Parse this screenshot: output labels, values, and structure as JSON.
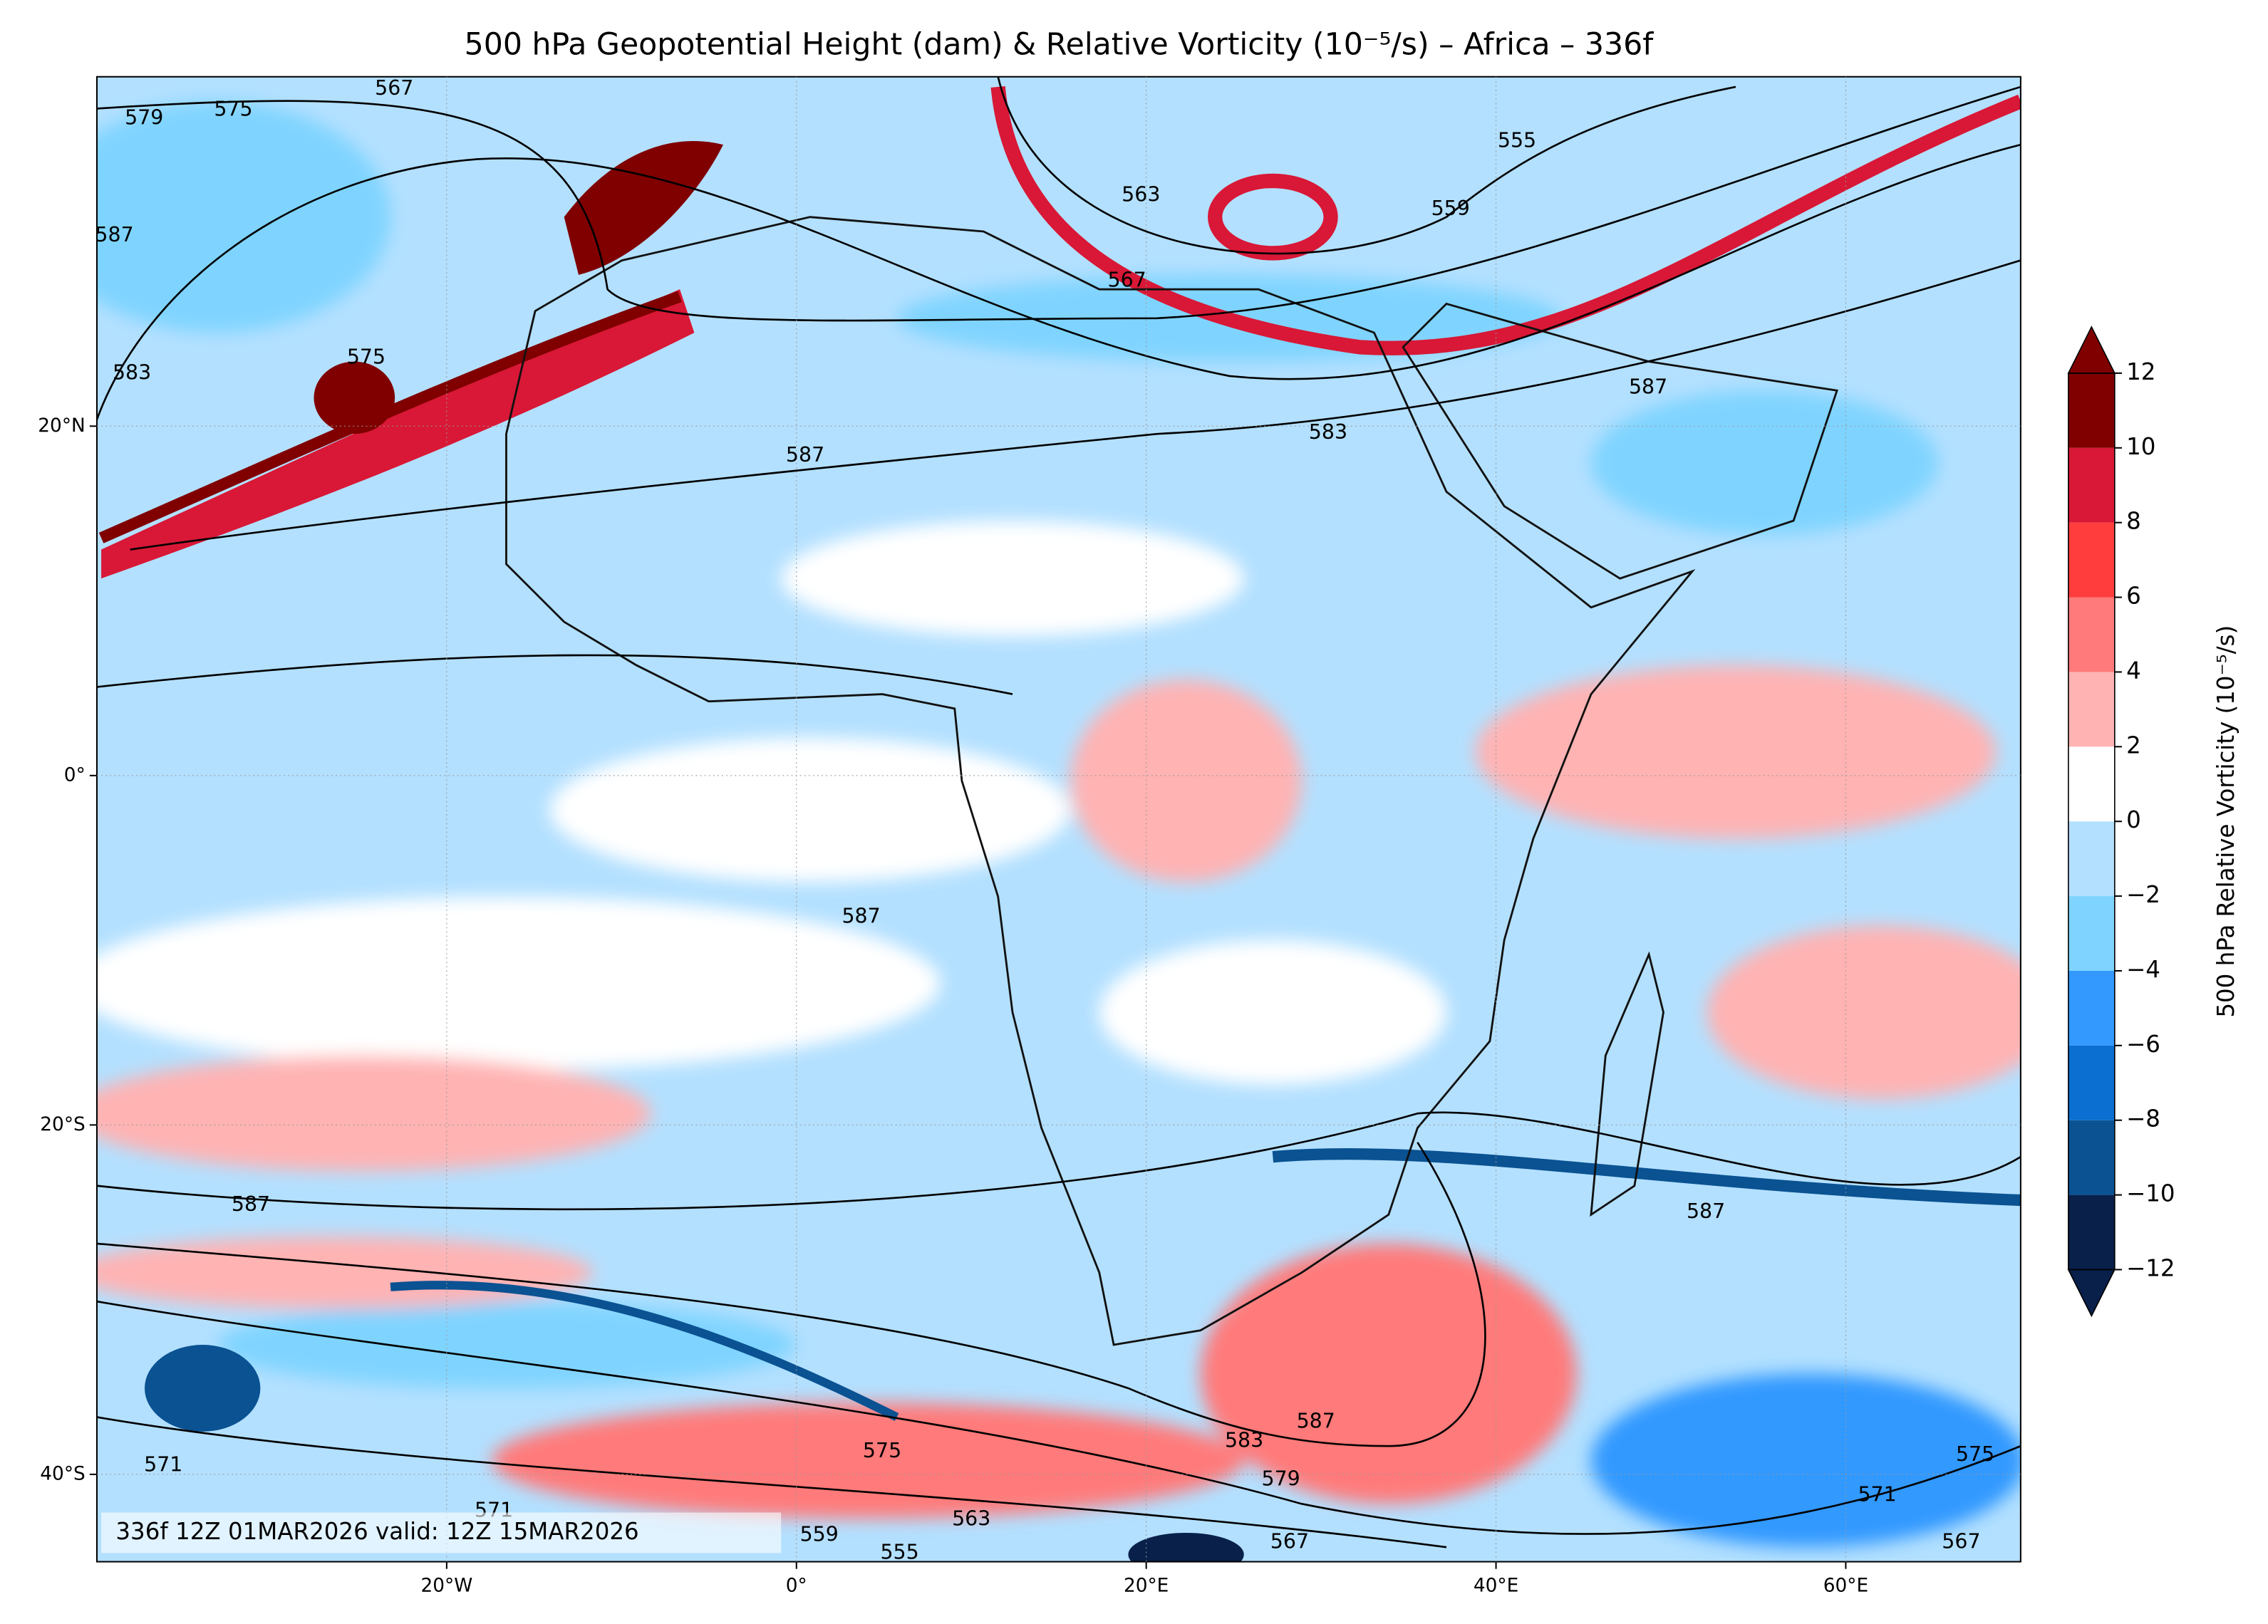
{
  "map_data": {
    "title": "500 hPa Geopotential Height (dam) & Relative Vorticity (10⁻⁵/s) – Africa – 336f",
    "footer": "336f 12Z 01MAR2026 valid: 12Z 15MAR2026",
    "xlim": [
      -40,
      70
    ],
    "ylim": [
      -45,
      40
    ],
    "xticks": [
      {
        "value": -20,
        "label": "20°W"
      },
      {
        "value": 0,
        "label": "0°"
      },
      {
        "value": 20,
        "label": "20°E"
      },
      {
        "value": 40,
        "label": "40°E"
      },
      {
        "value": 60,
        "label": "60°E"
      }
    ],
    "yticks": [
      {
        "value": 20,
        "label": "20°N"
      },
      {
        "value": 0,
        "label": "0°"
      },
      {
        "value": -20,
        "label": "20°S"
      },
      {
        "value": -40,
        "label": "40°S"
      }
    ],
    "contour_labels": [
      {
        "lon": -23,
        "lat": 39.3,
        "value": 567
      },
      {
        "lon": -32.2,
        "lat": 38.1,
        "value": 575
      },
      {
        "lon": -37.3,
        "lat": 37.6,
        "value": 579
      },
      {
        "lon": -39,
        "lat": 30.9,
        "value": 587
      },
      {
        "lon": -38,
        "lat": 23,
        "value": 583
      },
      {
        "lon": -24.6,
        "lat": 23.9,
        "value": 575
      },
      {
        "lon": 0.5,
        "lat": 18.3,
        "value": 587
      },
      {
        "lon": 30.4,
        "lat": 19.6,
        "value": 583
      },
      {
        "lon": 48.7,
        "lat": 22.2,
        "value": 587
      },
      {
        "lon": 18.9,
        "lat": 28.3,
        "value": 567
      },
      {
        "lon": 19.7,
        "lat": 33.2,
        "value": 563
      },
      {
        "lon": 37.4,
        "lat": 32.4,
        "value": 559
      },
      {
        "lon": 41.2,
        "lat": 36.3,
        "value": 555
      },
      {
        "lon": 3.7,
        "lat": -8.1,
        "value": 587
      },
      {
        "lon": -31.2,
        "lat": -24.6,
        "value": 587
      },
      {
        "lon": 52,
        "lat": -25,
        "value": 587
      },
      {
        "lon": 29.7,
        "lat": -37,
        "value": 587
      },
      {
        "lon": 25.6,
        "lat": -38.1,
        "value": 583
      },
      {
        "lon": 27.7,
        "lat": -40.3,
        "value": 579
      },
      {
        "lon": 4.9,
        "lat": -38.7,
        "value": 575
      },
      {
        "lon": 10,
        "lat": -42.6,
        "value": 563
      },
      {
        "lon": 1.3,
        "lat": -43.5,
        "value": 559
      },
      {
        "lon": 5.9,
        "lat": -44.5,
        "value": 555
      },
      {
        "lon": -17.3,
        "lat": -42.1,
        "value": 571
      },
      {
        "lon": -36.2,
        "lat": -39.5,
        "value": 571
      },
      {
        "lon": 28.2,
        "lat": -43.9,
        "value": 567
      },
      {
        "lon": 61.8,
        "lat": -41.2,
        "value": 571
      },
      {
        "lon": 67.4,
        "lat": -38.9,
        "value": 575
      },
      {
        "lon": 66.6,
        "lat": -43.9,
        "value": 567
      }
    ],
    "colorbar": {
      "label": "500 hPa Relative Vorticity (10⁻⁵/s)",
      "levels": [
        {
          "value": -12,
          "label": "−12"
        },
        {
          "value": -10,
          "label": "−10"
        },
        {
          "value": -8,
          "label": "−8"
        },
        {
          "value": -6,
          "label": "−6"
        },
        {
          "value": -4,
          "label": "−4"
        },
        {
          "value": -2,
          "label": "−2"
        },
        0,
        2,
        4,
        6,
        8,
        10,
        12
      ],
      "colors": [
        "#08204a",
        "#0a5292",
        "#0a6fd0",
        "#3399ff",
        "#7fd4ff",
        "#b3e0ff",
        "#ffffff",
        "#ffb3b3",
        "#ff7a7a",
        "#ff3d3d",
        "#d81836",
        "#800000"
      ],
      "under_color": "#08204a",
      "over_color": "#800000"
    }
  }
}
